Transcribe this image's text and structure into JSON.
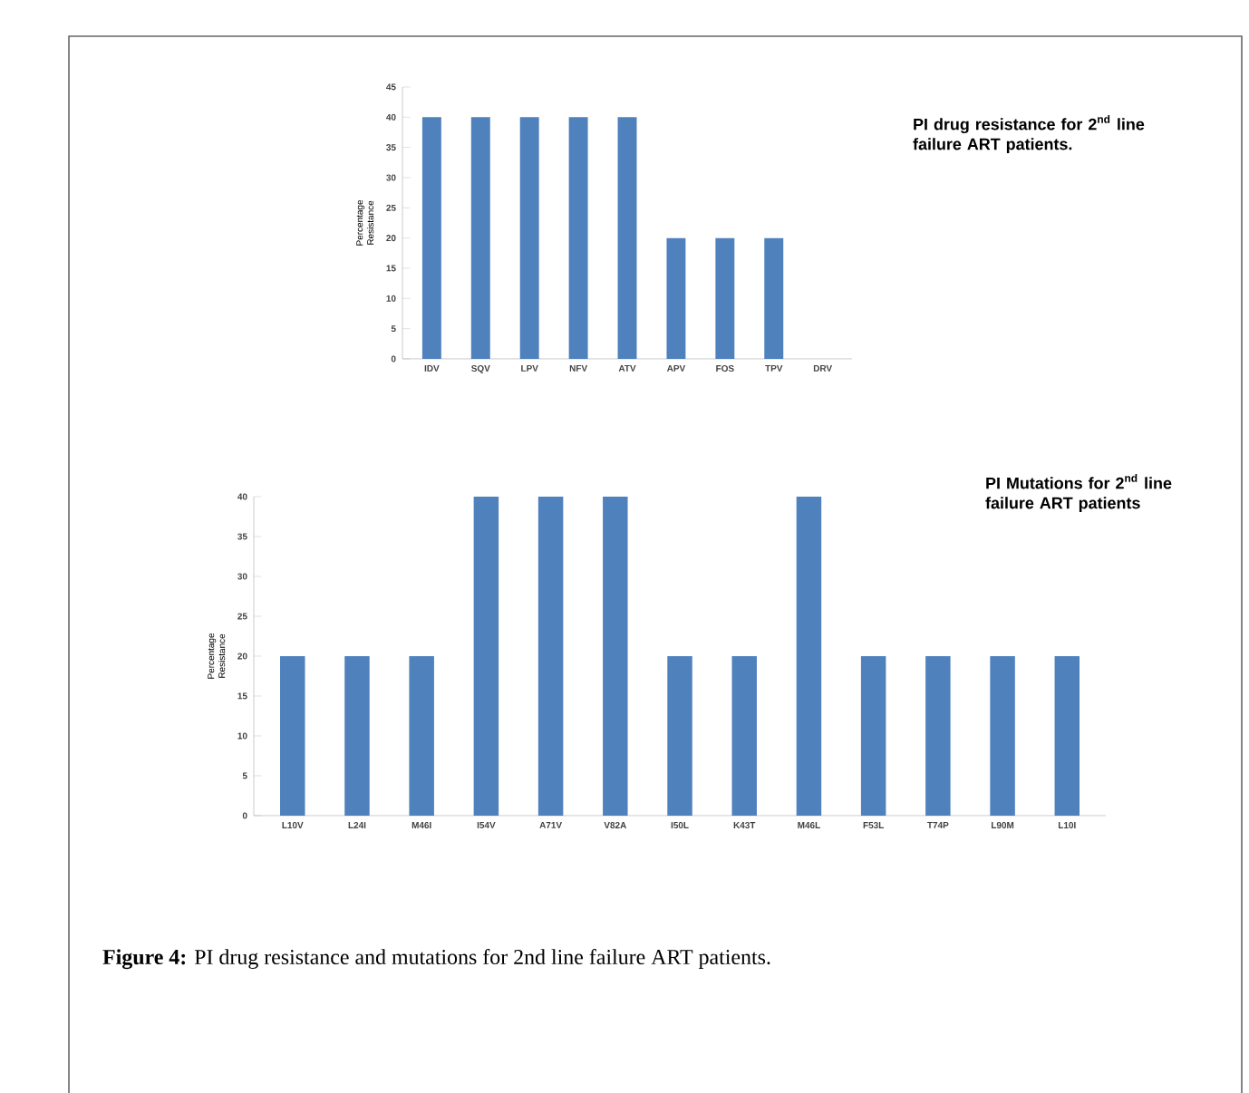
{
  "chart_data": [
    {
      "type": "bar",
      "title": "PI drug resistance for 2$^{nd}$ line failure ART patients.",
      "ylabel": "Percentage Resistance",
      "categories": [
        "IDV",
        "SQV",
        "LPV",
        "NFV",
        "ATV",
        "APV",
        "FOS",
        "TPV",
        "DRV"
      ],
      "values": [
        40,
        40,
        40,
        40,
        40,
        20,
        20,
        20,
        0
      ],
      "color": "#4f81bd",
      "ylim": [
        0,
        45
      ],
      "yticks": [
        0,
        5,
        10,
        15,
        20,
        25,
        30,
        35,
        40,
        45
      ]
    },
    {
      "type": "bar",
      "title": "PI Mutations for 2$^{nd}$ line failure ART patients",
      "ylabel": "Percentage Resistance",
      "categories": [
        "L10V",
        "L24I",
        "M46I",
        "I54V",
        "A71V",
        "V82A",
        "I50L",
        "K43T",
        "M46L",
        "F53L",
        "T74P",
        "L90M",
        "L10I"
      ],
      "values": [
        20,
        20,
        20,
        40,
        40,
        40,
        20,
        20,
        40,
        20,
        20,
        20,
        20
      ],
      "color": "#4f81bd",
      "ylim": [
        0,
        40
      ],
      "yticks": [
        0,
        5,
        10,
        15,
        20,
        25,
        30,
        35,
        40
      ],
      "annotations": [
        "**Figure 4:** PI drug resistance and mutations for 2nd line failure ART patients."
      ]
    }
  ]
}
